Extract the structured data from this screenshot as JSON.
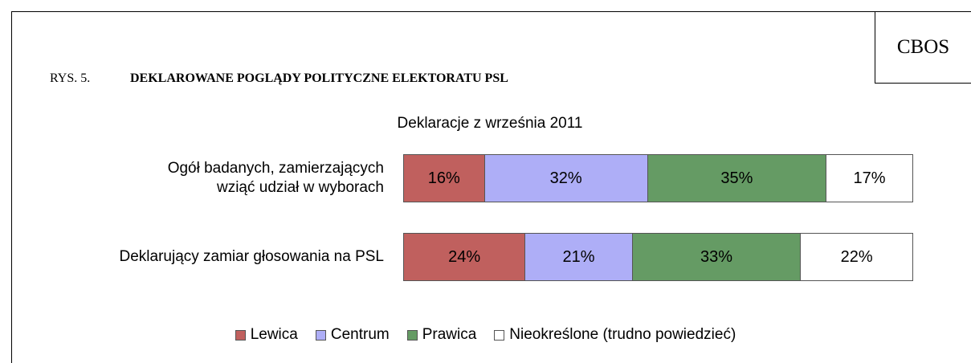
{
  "header": {
    "brand": "CBOS",
    "figure": "RYS. 5."
  },
  "chart_data": {
    "type": "bar",
    "orientation": "horizontal",
    "stacked": true,
    "title": "DEKLAROWANE POGLĄDY POLITYCZNE ELEKTORATU PSL",
    "subtitle": "Deklaracje z września 2011",
    "categories": [
      "Ogół badanych, zamierzających\nwziąć udział w wyborach",
      "Deklarujący zamiar głosowania na PSL"
    ],
    "series": [
      {
        "name": "Lewica",
        "color": "#c0605e",
        "values": [
          16,
          24
        ],
        "value_labels": [
          "16%",
          "24%"
        ]
      },
      {
        "name": "Centrum",
        "color": "#aeaef7",
        "values": [
          32,
          21
        ],
        "value_labels": [
          "32%",
          "21%"
        ]
      },
      {
        "name": "Prawica",
        "color": "#659b64",
        "values": [
          35,
          33
        ],
        "value_labels": [
          "35%",
          "33%"
        ]
      },
      {
        "name": "Nieokreślone (trudno powiedzieć)",
        "color": "#ffffff",
        "values": [
          17,
          22
        ],
        "value_labels": [
          "17%",
          "22%"
        ]
      }
    ],
    "legend": "bottom"
  }
}
